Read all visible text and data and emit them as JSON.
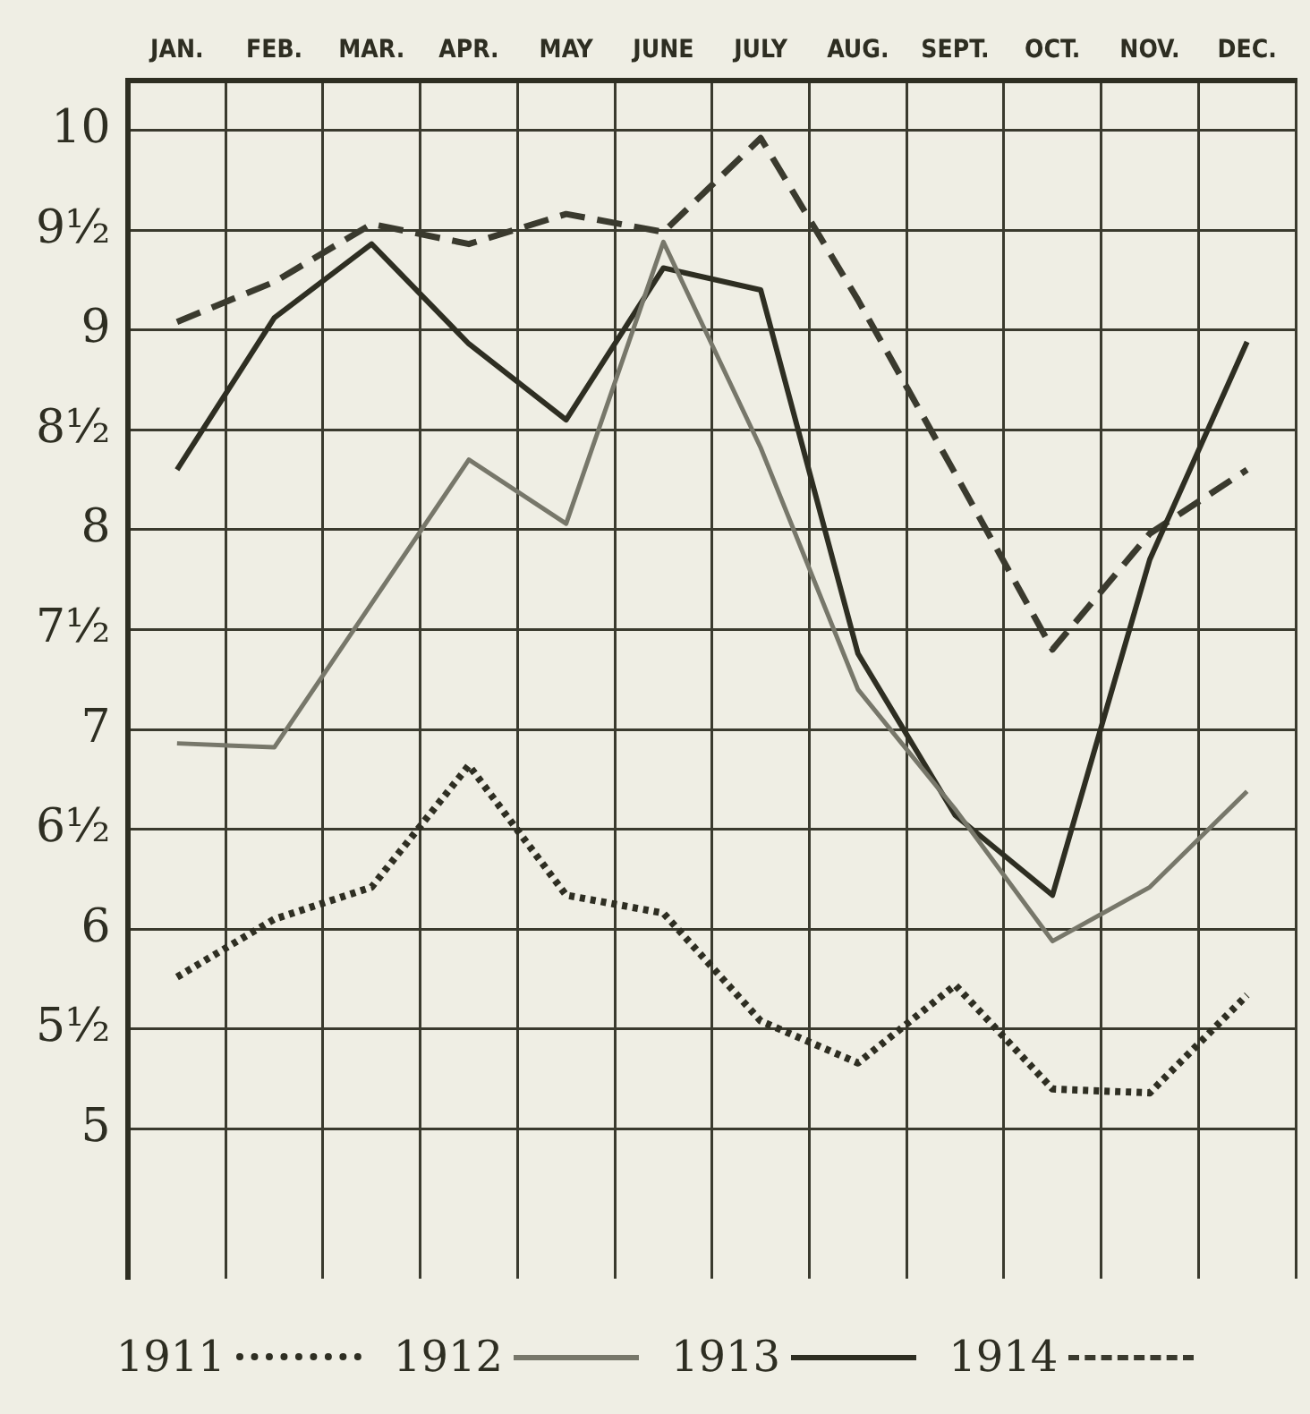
{
  "chart_data": {
    "type": "line",
    "categories": [
      "JAN.",
      "FEB.",
      "MAR.",
      "APR.",
      "MAY",
      "JUNE",
      "JULY",
      "AUG.",
      "SEPT.",
      "OCT.",
      "NOV.",
      "DEC."
    ],
    "series": [
      {
        "name": "1911",
        "color": "#2e2e22",
        "line_style": "dotted",
        "values": [
          5.76,
          6.05,
          6.21,
          6.82,
          6.17,
          6.08,
          5.54,
          5.33,
          5.72,
          5.2,
          5.18,
          5.67
        ]
      },
      {
        "name": "1912",
        "color": "#77776a",
        "line_style": "solid",
        "values": [
          6.93,
          6.91,
          7.63,
          8.35,
          8.03,
          9.44,
          8.41,
          7.2,
          6.6,
          5.94,
          6.21,
          6.69
        ]
      },
      {
        "name": "1913",
        "color": "#2e2e22",
        "line_style": "solid",
        "values": [
          8.3,
          9.06,
          9.43,
          8.93,
          8.55,
          9.31,
          9.2,
          7.38,
          6.57,
          6.17,
          7.85,
          8.94
        ]
      },
      {
        "name": "1914",
        "color": "#3a3a2e",
        "line_style": "dashed",
        "values": [
          9.04,
          9.24,
          9.53,
          9.43,
          9.58,
          9.49,
          9.96,
          9.15,
          8.28,
          7.4,
          7.98,
          8.3
        ]
      }
    ],
    "ylim": [
      4.25,
      10.25
    ],
    "yticks": [
      5,
      {
        "value": 5.5,
        "label": "5½"
      },
      6,
      {
        "value": 6.5,
        "label": "6½"
      },
      7,
      {
        "value": 7.5,
        "label": "7½"
      },
      8,
      {
        "value": 8.5,
        "label": "8½"
      },
      9,
      {
        "value": 9.5,
        "label": "9½"
      },
      10
    ],
    "grid": true,
    "legend": "bottom",
    "marker": "none"
  }
}
